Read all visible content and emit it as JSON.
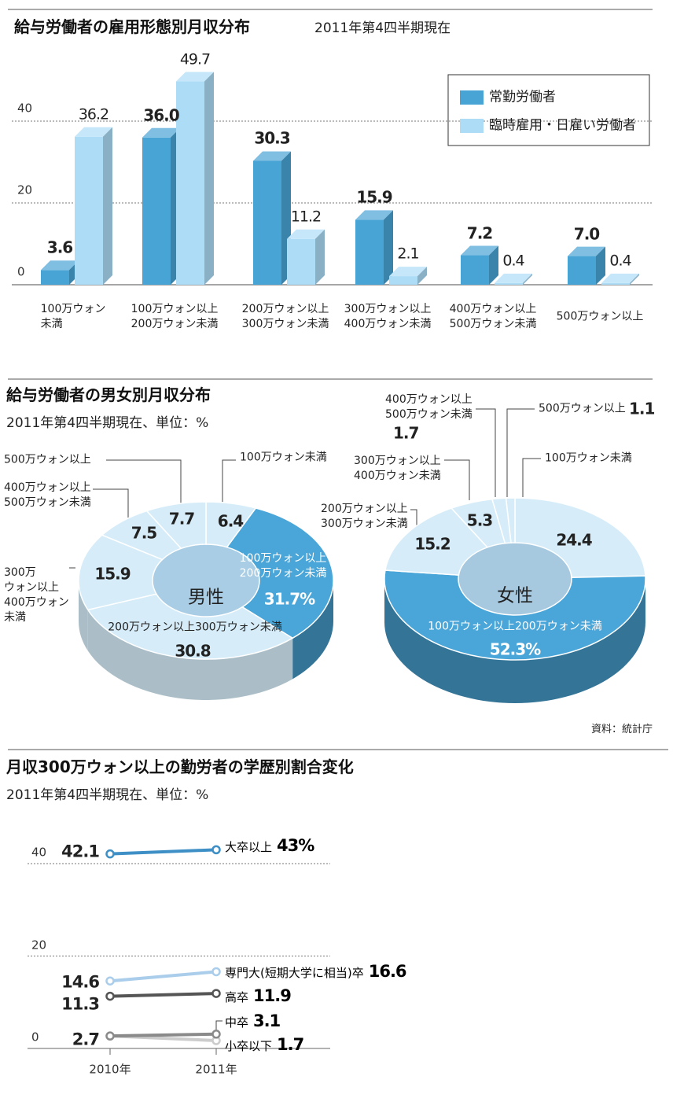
{
  "chart_data": [
    {
      "type": "bar",
      "title": "給与労働者の雇用形態別月収分布",
      "subtitle": "2011年第4四半期現在",
      "categories": [
        "100万ウォン\n未満",
        "100万ウォン以上\n200万ウォン未満",
        "200万ウォン以上\n300万ウォン未満",
        "300万ウォン以上\n400万ウォン未満",
        "400万ウォン以上\n500万ウォン未満",
        "500万ウォン以上"
      ],
      "series": [
        {
          "name": "常勤労働者",
          "color": "#49a4d6",
          "values": [
            3.6,
            36,
            30.3,
            15.9,
            7.2,
            7
          ],
          "value_labels": [
            "3.6",
            "36.0",
            "30.3",
            "15.9",
            "7.2",
            "7.0"
          ]
        },
        {
          "name": "臨時雇用・日雇い労働者",
          "color": "#acdcf6",
          "values": [
            36.2,
            49.7,
            11.2,
            2.1,
            0.4,
            0.4
          ]
        }
      ],
      "ylim": [
        0,
        50
      ],
      "yticks": [
        0,
        20,
        40
      ],
      "grid": true,
      "legend": "upper right"
    },
    {
      "type": "pie",
      "title": "給与労働者の男女別月収分布",
      "subtitle": "2011年第4四半期現在、単位：%",
      "center_label": "男性",
      "categories": [
        "100万ウォン未満",
        "100万ウォン以上\n200万ウォン未満",
        "200万ウォン以上300万ウォン未満",
        "300万\nウォン以上\n400万ウォン\n未満",
        "400万ウォン以上\n500万ウォン未満",
        "500万ウォン以上"
      ],
      "values": [
        6.4,
        31.7,
        30.8,
        15.9,
        7.5,
        7.7
      ],
      "value_labels": [
        "6.4",
        "31.7%",
        "30.8",
        "15.9",
        "7.5",
        "7.7"
      ],
      "colors": [
        "#d6edf9",
        "#4aa6d8",
        "#d6edf9",
        "#d6edf9",
        "#d6edf9",
        "#d6edf9"
      ]
    },
    {
      "type": "pie",
      "center_label": "女性",
      "source": "資料：統計庁",
      "categories": [
        "100万ウォン未満",
        "100万ウォン以上200万ウォン未満",
        "200万ウォン以上\n300万ウォン未満",
        "300万ウォン以上\n400万ウォン未満",
        "400万ウォン以上\n500万ウォン未満",
        "500万ウォン以上"
      ],
      "values": [
        24.4,
        52.3,
        15.2,
        5.3,
        1.7,
        1.1
      ],
      "value_labels": [
        "24.4",
        "52.3%",
        "15.2",
        "5.3",
        "1.7",
        "1.1"
      ],
      "colors": [
        "#d6edf9",
        "#4aa6d8",
        "#d6edf9",
        "#d6edf9",
        "#d6edf9",
        "#d6edf9"
      ]
    },
    {
      "type": "line",
      "title": "月収300万ウォン以上の勤労者の学歴別割合変化",
      "subtitle": "2011年第4四半期現在、単位：%",
      "categories": [
        "2010年",
        "2011年"
      ],
      "series": [
        {
          "name": "大卒以上",
          "color": "#3d8fc6",
          "values": [
            42.1,
            43
          ],
          "value_labels": [
            "42.1",
            "43%"
          ]
        },
        {
          "name": "専門大(短期大学に相当)卒",
          "color": "#a9cdea",
          "values": [
            14.6,
            16.6
          ]
        },
        {
          "name": "高卒",
          "color": "#555555",
          "values": [
            11.3,
            11.9
          ]
        },
        {
          "name": "中卒",
          "color": "#8a8a8a",
          "values": [
            2.7,
            3.1
          ]
        },
        {
          "name": "小卒以下",
          "color": "#cccccc",
          "values": [
            2.7,
            1.7
          ],
          "value_labels": [
            null,
            "1.7"
          ]
        }
      ],
      "ylim": [
        0,
        45
      ],
      "yticks": [
        0,
        20,
        40
      ],
      "grid": true
    }
  ]
}
